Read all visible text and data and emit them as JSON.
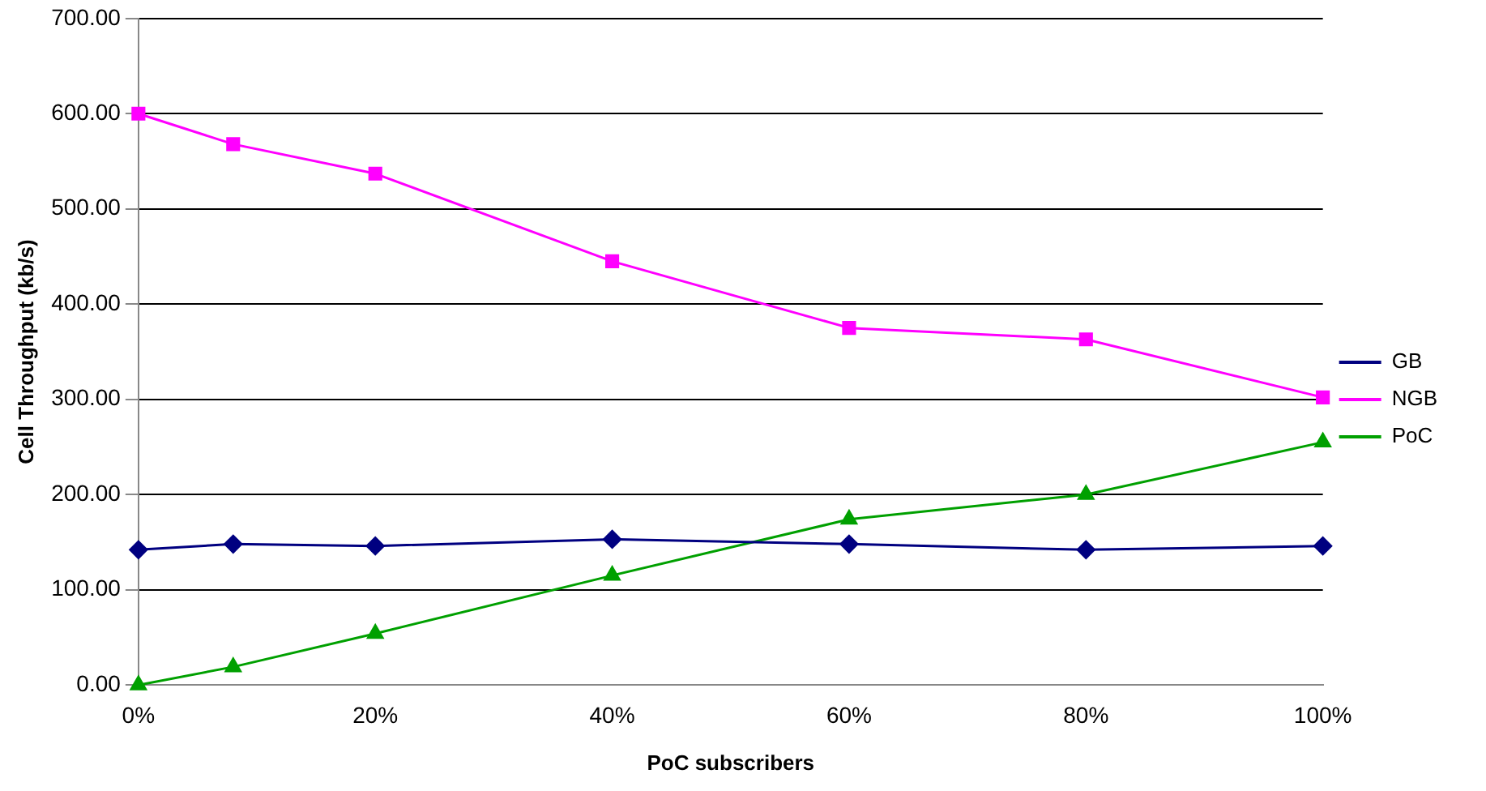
{
  "chart_data": {
    "type": "line",
    "xlabel": "PoC subscribers",
    "ylabel": "Cell Throughput (kb/s)",
    "xlim": [
      0,
      100
    ],
    "xticks": [
      {
        "value": 0,
        "label": "0%"
      },
      {
        "value": 20,
        "label": "20%"
      },
      {
        "value": 40,
        "label": "40%"
      },
      {
        "value": 60,
        "label": "60%"
      },
      {
        "value": 80,
        "label": "80%"
      },
      {
        "value": 100,
        "label": "100%"
      }
    ],
    "ylim": [
      0,
      700
    ],
    "yticks": [
      {
        "value": 0,
        "label": "0.00"
      },
      {
        "value": 100,
        "label": "100.00"
      },
      {
        "value": 200,
        "label": "200.00"
      },
      {
        "value": 300,
        "label": "300.00"
      },
      {
        "value": 400,
        "label": "400.00"
      },
      {
        "value": 500,
        "label": "500.00"
      },
      {
        "value": 600,
        "label": "600.00"
      },
      {
        "value": 700,
        "label": "700.00"
      }
    ],
    "x": [
      0,
      8,
      20,
      40,
      60,
      80,
      100
    ],
    "series": [
      {
        "name": "GB",
        "color": "#000080",
        "marker": "diamond",
        "values": [
          142,
          148,
          146,
          153,
          148,
          142,
          146
        ]
      },
      {
        "name": "NGB",
        "color": "#ff00ff",
        "marker": "square",
        "values": [
          600,
          568,
          537,
          445,
          375,
          363,
          302
        ]
      },
      {
        "name": "PoC",
        "color": "#00a000",
        "marker": "triangle",
        "values": [
          0,
          19,
          54,
          115,
          174,
          200,
          255
        ]
      }
    ],
    "grid": "y",
    "legend": "right",
    "line_style": "solid"
  }
}
